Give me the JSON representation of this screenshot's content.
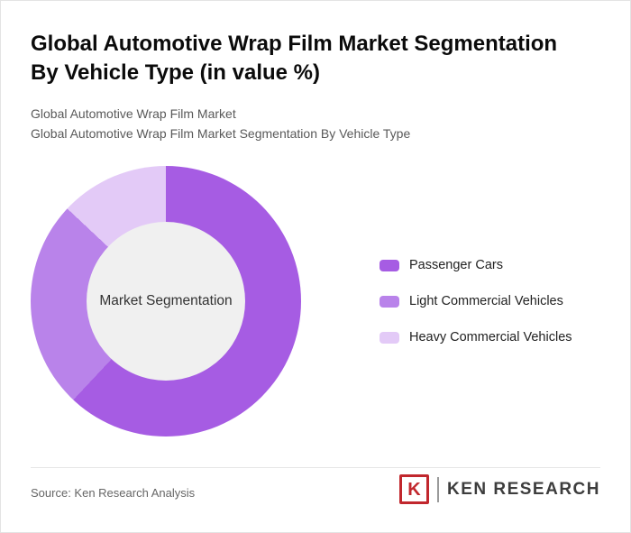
{
  "header": {
    "title_line1": "Global Automotive Wrap Film Market Segmentation",
    "title_line2": "By Vehicle Type (in value %)",
    "subtitle1": "Global Automotive Wrap Film Market",
    "subtitle2": "Global Automotive Wrap Film Market Segmentation By Vehicle Type"
  },
  "chart_data": {
    "type": "pie",
    "variant": "donut",
    "title": "Global Automotive Wrap Film Market Segmentation By Vehicle Type (in value %)",
    "center_label": "Market Segmentation",
    "categories": [
      "Passenger Cars",
      "Light Commercial Vehicles",
      "Heavy Commercial Vehicles"
    ],
    "values": [
      62,
      25,
      13
    ],
    "unit": "value %",
    "colors": [
      "#a65ce3",
      "#b983ea",
      "#e3caf7"
    ],
    "hole_color": "#f0f0f0",
    "legend_position": "right",
    "start_angle_deg": 0,
    "direction": "clockwise",
    "data_labels_shown": false
  },
  "footer": {
    "source": "Source: Ken Research Analysis",
    "logo": {
      "monogram": "K",
      "brand": "KEN RESEARCH"
    }
  }
}
